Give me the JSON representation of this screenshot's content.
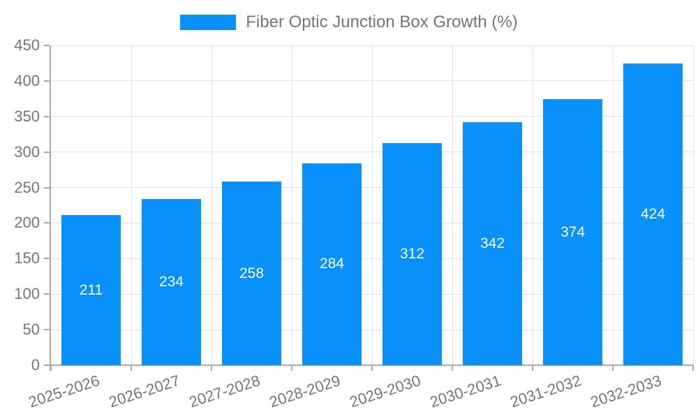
{
  "legend": {
    "position": "top"
  },
  "colors": {
    "bar": "#0991FB",
    "grid_line": "#E0E0E0",
    "axis_line": "#AAAAAA",
    "axis_text": "#757575",
    "bar_label_text": "#FFFFFF"
  },
  "chart_data": {
    "type": "bar",
    "title": "Fiber Optic Junction Box Growth (%)",
    "categories": [
      "2025-2026",
      "2026-2027",
      "2027-2028",
      "2028-2029",
      "2029-2030",
      "2030-2031",
      "2031-2032",
      "2032-2033"
    ],
    "values": [
      211,
      234,
      258,
      284,
      312,
      342,
      374,
      424
    ],
    "xlabel": "",
    "ylabel": "",
    "ylim": [
      0,
      450
    ],
    "ytick_step": 50,
    "yticks": [
      0,
      50,
      100,
      150,
      200,
      250,
      300,
      350,
      400,
      450
    ],
    "grid": true,
    "legend_position": "top",
    "bar_labels": "inside-center",
    "x_label_rotation_deg": -18
  }
}
